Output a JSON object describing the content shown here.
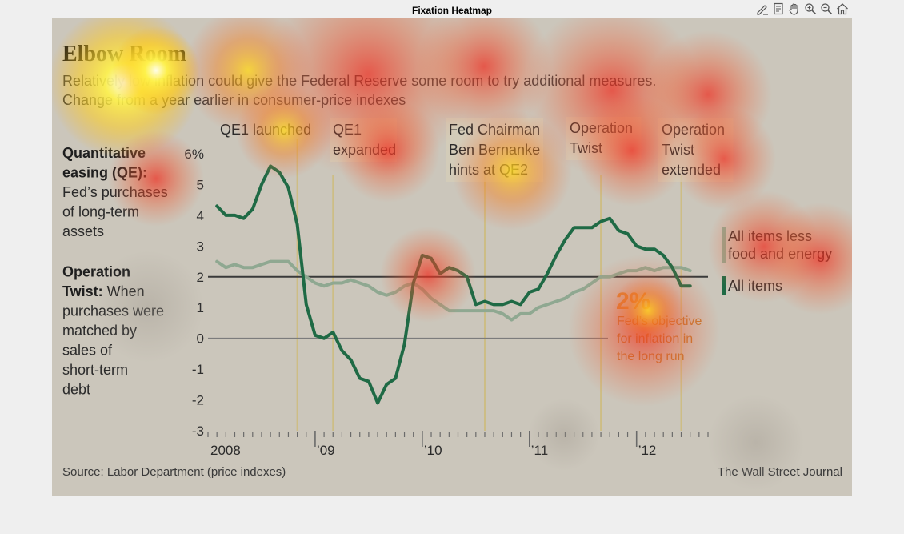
{
  "window": {
    "title": "Fixation Heatmap",
    "toolbar": [
      {
        "name": "edit-icon"
      },
      {
        "name": "page-icon"
      },
      {
        "name": "hand-pan-icon"
      },
      {
        "name": "zoom-in-icon"
      },
      {
        "name": "zoom-out-icon"
      },
      {
        "name": "home-icon"
      }
    ]
  },
  "colors": {
    "page_bg": "#efefef",
    "figure_bg": "#cbc6bb",
    "all_items_line": "#1f6a45",
    "core_line": "#8fa891",
    "target_line": "#3a3a3a",
    "zero_line": "#7c7c7c",
    "event_line": "#cdbd85",
    "heat_red": "#e83a2a",
    "heat_yellow": "#ffe600"
  },
  "chart_data": {
    "type": "line",
    "title": "Elbow Room",
    "subtitle": [
      "Relatively low inflation could give the Federal Reserve some room to try additional measures.",
      "Change from a year earlier in consumer-price indexes"
    ],
    "ylim": [
      -3,
      6
    ],
    "yticks": [
      "6%",
      "5",
      "4",
      "3",
      "2",
      "1",
      "0",
      "-1",
      "-2",
      "-3"
    ],
    "year_labels": [
      "2008",
      "’09",
      "’10",
      "’11",
      "’12"
    ],
    "x_range": [
      "2008-01",
      "2012-09"
    ],
    "series": [
      {
        "name": "All items",
        "values": [
          4.3,
          4.0,
          4.0,
          3.9,
          4.2,
          5.0,
          5.6,
          5.4,
          4.9,
          3.7,
          1.1,
          0.1,
          0.0,
          0.2,
          -0.4,
          -0.7,
          -1.3,
          -1.4,
          -2.1,
          -1.5,
          -1.3,
          -0.2,
          1.8,
          2.7,
          2.6,
          2.1,
          2.3,
          2.2,
          2.0,
          1.1,
          1.2,
          1.1,
          1.1,
          1.2,
          1.1,
          1.5,
          1.6,
          2.1,
          2.7,
          3.2,
          3.6,
          3.6,
          3.6,
          3.8,
          3.9,
          3.5,
          3.4,
          3.0,
          2.9,
          2.9,
          2.7,
          2.3,
          1.7,
          1.7
        ]
      },
      {
        "name": "All items less food and energy",
        "values": [
          2.5,
          2.3,
          2.4,
          2.3,
          2.3,
          2.4,
          2.5,
          2.5,
          2.5,
          2.2,
          2.0,
          1.8,
          1.7,
          1.8,
          1.8,
          1.9,
          1.8,
          1.7,
          1.5,
          1.4,
          1.5,
          1.7,
          1.8,
          1.6,
          1.3,
          1.1,
          0.9,
          0.9,
          0.9,
          0.9,
          0.9,
          0.9,
          0.8,
          0.6,
          0.8,
          0.8,
          1.0,
          1.1,
          1.2,
          1.3,
          1.5,
          1.6,
          1.8,
          2.0,
          2.0,
          2.1,
          2.2,
          2.2,
          2.3,
          2.2,
          2.3,
          2.3,
          2.3,
          2.2
        ]
      }
    ],
    "reference_line": {
      "value": 2,
      "label_big": "2%",
      "label": [
        "Fed’s objective",
        "for inflation in",
        "the long run"
      ]
    },
    "events": [
      {
        "date": "2008-11",
        "label": [
          "QE1 launched"
        ]
      },
      {
        "date": "2009-03",
        "label": [
          "QE1",
          "expanded"
        ]
      },
      {
        "date": "2010-08",
        "label": [
          "Fed Chairman",
          "Ben Bernanke",
          "hints at QE2"
        ]
      },
      {
        "date": "2011-09",
        "label": [
          "Operation",
          "Twist"
        ]
      },
      {
        "date": "2012-06",
        "label": [
          "Operation",
          "Twist",
          "extended"
        ]
      }
    ],
    "legend": [
      {
        "label": [
          "All items less",
          "food and energy"
        ],
        "series": "All items less food and energy"
      },
      {
        "label": [
          "All items"
        ],
        "series": "All items"
      }
    ],
    "definitions": [
      {
        "term": "Quantitative easing (QE):",
        "term_lines": [
          "Quantitative",
          "easing (QE):"
        ],
        "text_lines": [
          "Fed’s purchases",
          "of long-term",
          "assets"
        ]
      },
      {
        "term": "Operation Twist:",
        "term_lines": [
          "Operation",
          "Twist:"
        ],
        "text_lines": [
          "When",
          "purchases were",
          "matched by",
          "sales of",
          "short-term",
          "debt"
        ]
      }
    ],
    "source": "Source: Labor Department (price indexes)",
    "credit": "The Wall Street Journal",
    "grid": false,
    "legend_placement": "right"
  }
}
